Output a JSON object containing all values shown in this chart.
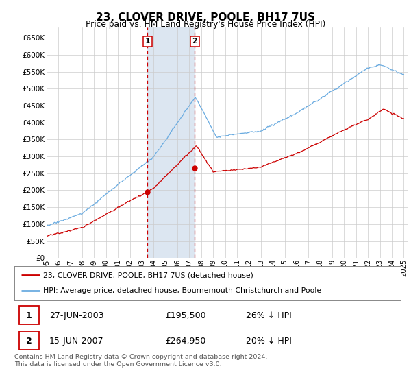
{
  "title": "23, CLOVER DRIVE, POOLE, BH17 7US",
  "subtitle": "Price paid vs. HM Land Registry's House Price Index (HPI)",
  "ylabel_ticks": [
    "£0",
    "£50K",
    "£100K",
    "£150K",
    "£200K",
    "£250K",
    "£300K",
    "£350K",
    "£400K",
    "£450K",
    "£500K",
    "£550K",
    "£600K",
    "£650K"
  ],
  "ytick_vals": [
    0,
    50000,
    100000,
    150000,
    200000,
    250000,
    300000,
    350000,
    400000,
    450000,
    500000,
    550000,
    600000,
    650000
  ],
  "ylim": [
    0,
    680000
  ],
  "xlim_start": 1995.0,
  "xlim_end": 2025.3,
  "transaction1_date": 2003.487,
  "transaction1_price": 195500,
  "transaction2_date": 2007.455,
  "transaction2_price": 264950,
  "hpi_color": "#6aabe0",
  "price_color": "#cc0000",
  "highlight_color": "#dce6f1",
  "grid_color": "#cccccc",
  "background_color": "#ffffff",
  "legend_line1": "23, CLOVER DRIVE, POOLE, BH17 7US (detached house)",
  "legend_line2": "HPI: Average price, detached house, Bournemouth Christchurch and Poole",
  "annotation1": "27-JUN-2003",
  "annotation1_price": "£195,500",
  "annotation1_pct": "26% ↓ HPI",
  "annotation2": "15-JUN-2007",
  "annotation2_price": "£264,950",
  "annotation2_pct": "20% ↓ HPI",
  "footer": "Contains HM Land Registry data © Crown copyright and database right 2024.\nThis data is licensed under the Open Government Licence v3.0.",
  "xtick_years": [
    1995,
    1996,
    1997,
    1998,
    1999,
    2000,
    2001,
    2002,
    2003,
    2004,
    2005,
    2006,
    2007,
    2008,
    2009,
    2010,
    2011,
    2012,
    2013,
    2014,
    2015,
    2016,
    2017,
    2018,
    2019,
    2020,
    2021,
    2022,
    2023,
    2024,
    2025
  ]
}
